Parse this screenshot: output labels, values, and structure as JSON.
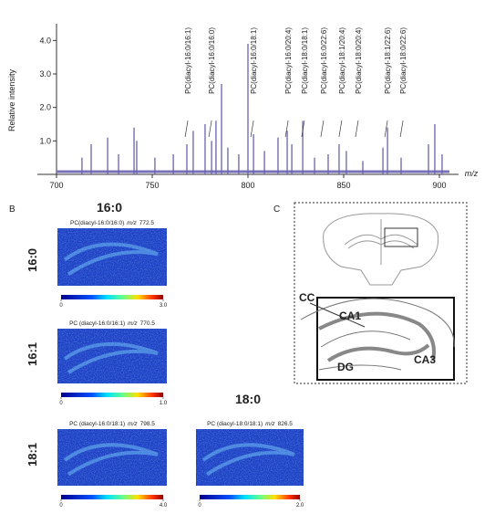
{
  "panel_a": {
    "y_axis_label": "Relative intensity",
    "x_axis_label": "m/z",
    "xlim": [
      690,
      910
    ],
    "ylim": [
      0,
      4.5
    ],
    "xticks": [
      700,
      750,
      800,
      850,
      900
    ],
    "yticks": [
      {
        "value": 1,
        "label": "1.0"
      },
      {
        "value": 2,
        "label": "2.0"
      },
      {
        "value": 3,
        "label": "3.0"
      },
      {
        "value": 4,
        "label": "4.0"
      }
    ],
    "peaks": {
      "mz": [
        713.3,
        718.1,
        726.7,
        732.4,
        740.5,
        741.9,
        751.4,
        761.0,
        768.1,
        771.4,
        777.6,
        781.0,
        783.3,
        786.2,
        789.5,
        795.2,
        800.0,
        802.9,
        808.6,
        815.7,
        820.5,
        822.9,
        828.6,
        834.8,
        841.9,
        847.6,
        851.4,
        860.0,
        870.5,
        872.9,
        880.0,
        894.3,
        897.6,
        901.4
      ],
      "intensity": [
        0.5,
        0.9,
        1.1,
        0.6,
        1.4,
        1.0,
        0.5,
        0.6,
        0.9,
        1.3,
        1.5,
        1.0,
        1.6,
        2.7,
        0.8,
        0.6,
        3.9,
        1.2,
        0.7,
        1.1,
        1.3,
        0.9,
        1.6,
        0.5,
        0.6,
        0.9,
        0.7,
        0.4,
        0.8,
        1.4,
        0.5,
        0.9,
        1.5,
        0.6
      ]
    },
    "peak_labels": [
      {
        "text": "PC(diacyl-16:0/16:1)",
        "mz": 768.6
      },
      {
        "text": "PC(diacyl-16:0/16:0)",
        "mz": 781.0
      },
      {
        "text": "PC(diacyl-16:0/18:1)",
        "mz": 802.9
      },
      {
        "text": "PC(diacyl-16:0/20:4)",
        "mz": 821.0
      },
      {
        "text": "PC(diacyl-18:0/18:1)",
        "mz": 829.5
      },
      {
        "text": "PC(diacyl-16:0/22:6)",
        "mz": 839.5
      },
      {
        "text": "PC(diacyl-18:1/20:4)",
        "mz": 849.0
      },
      {
        "text": "PC(diacyl-18:0/20:4)",
        "mz": 857.6
      },
      {
        "text": "PC(diacyl-18:1/22:6)",
        "mz": 872.9
      },
      {
        "text": "PC(diacyl-18:0/22:6)",
        "mz": 881.0
      }
    ]
  },
  "panel_b": {
    "label": "B",
    "column_headers": [
      "16:0",
      "18:0"
    ],
    "row_labels": [
      "16:0",
      "16:1",
      "18:1"
    ],
    "images": [
      {
        "compound": "PC(diacyl-16:0/16:0)",
        "mz_prefix": "m/z",
        "mz": 772.5,
        "scale": [
          0,
          {
            "value": 3,
            "label": "3.0"
          }
        ]
      },
      {
        "compound": "PC (diacyl-16:0/16:1)",
        "mz_prefix": "m/z",
        "mz": 770.5,
        "scale": [
          0,
          {
            "value": 1,
            "label": "1.0"
          }
        ]
      },
      {
        "compound": "PC (diacyl-16:0/18:1)",
        "mz_prefix": "m/z",
        "mz": 798.5,
        "scale": [
          0,
          {
            "value": 4,
            "label": "4.0"
          }
        ]
      },
      {
        "compound": "PC (diacyl-18:0/18:1)",
        "mz_prefix": "m/z",
        "mz": 826.5,
        "scale": [
          0,
          {
            "value": 2,
            "label": "2.0"
          }
        ]
      }
    ]
  },
  "panel_c": {
    "label": "C",
    "regions": [
      "CC",
      "CA1",
      "CA3",
      "DG"
    ]
  }
}
